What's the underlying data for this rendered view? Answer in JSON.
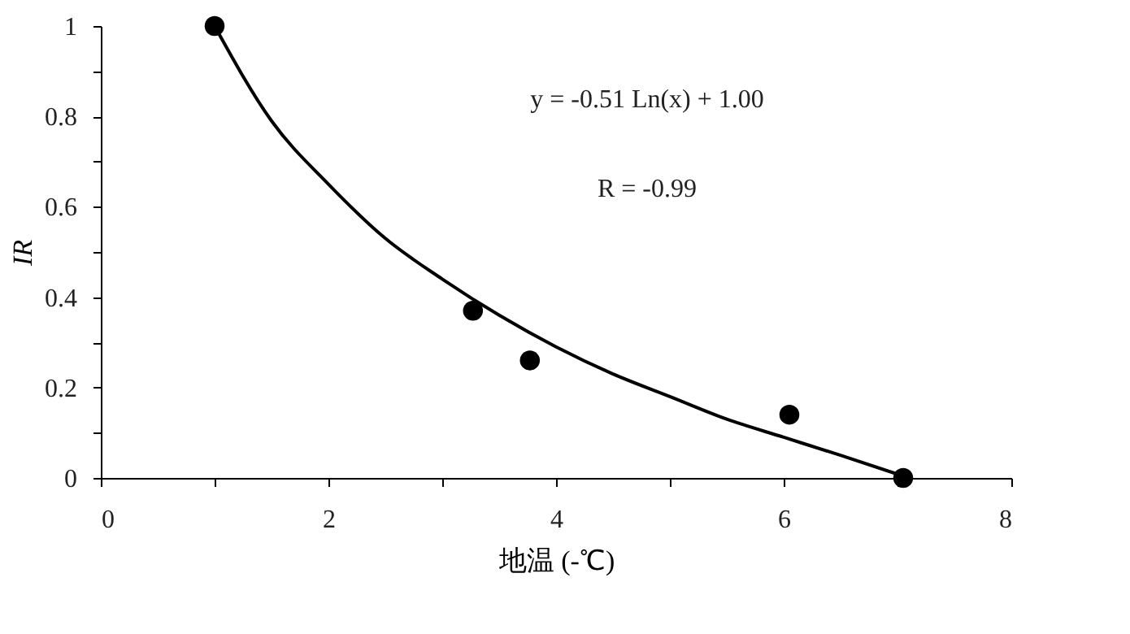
{
  "chart_data": {
    "type": "scatter",
    "xlabel": "地温 (-℃)",
    "ylabel": "IR",
    "xlim": [
      0,
      8
    ],
    "xticks": [
      0,
      {
        "value": 1,
        "label": null
      },
      2,
      {
        "value": 3,
        "label": null
      },
      4,
      {
        "value": 5,
        "label": null
      },
      6,
      {
        "value": 7,
        "label": null
      },
      8
    ],
    "ylim": [
      0,
      1
    ],
    "yticks": [
      0,
      {
        "value": 0.1,
        "label": null
      },
      0.2,
      {
        "value": 0.3,
        "label": null
      },
      0.4,
      {
        "value": 0.5,
        "label": null
      },
      0.6,
      {
        "value": 0.7,
        "label": null
      },
      0.8,
      {
        "value": 0.9,
        "label": null
      },
      1
    ],
    "grid": false,
    "marker": "circle",
    "series": [
      {
        "color": "#000000",
        "x": [
          1.0,
          3.27,
          3.77,
          6.05,
          7.05
        ],
        "values": [
          1.0,
          0.37,
          0.26,
          0.14,
          0.0
        ]
      },
      {
        "type": "line",
        "marker": "none",
        "color": "#000000",
        "line_style": "solid",
        "x": [
          1,
          1.5,
          2,
          2.5,
          3,
          3.5,
          4,
          4.5,
          5,
          5.5,
          6,
          6.5,
          7.1
        ],
        "values": [
          1.0,
          0.79,
          0.65,
          0.53,
          0.44,
          0.36,
          0.29,
          0.23,
          0.18,
          0.13,
          0.09,
          0.05,
          0.0
        ]
      }
    ],
    "annotations": [
      "y = -0.51 Ln(x) + 1.00",
      "R = -0.99"
    ]
  }
}
